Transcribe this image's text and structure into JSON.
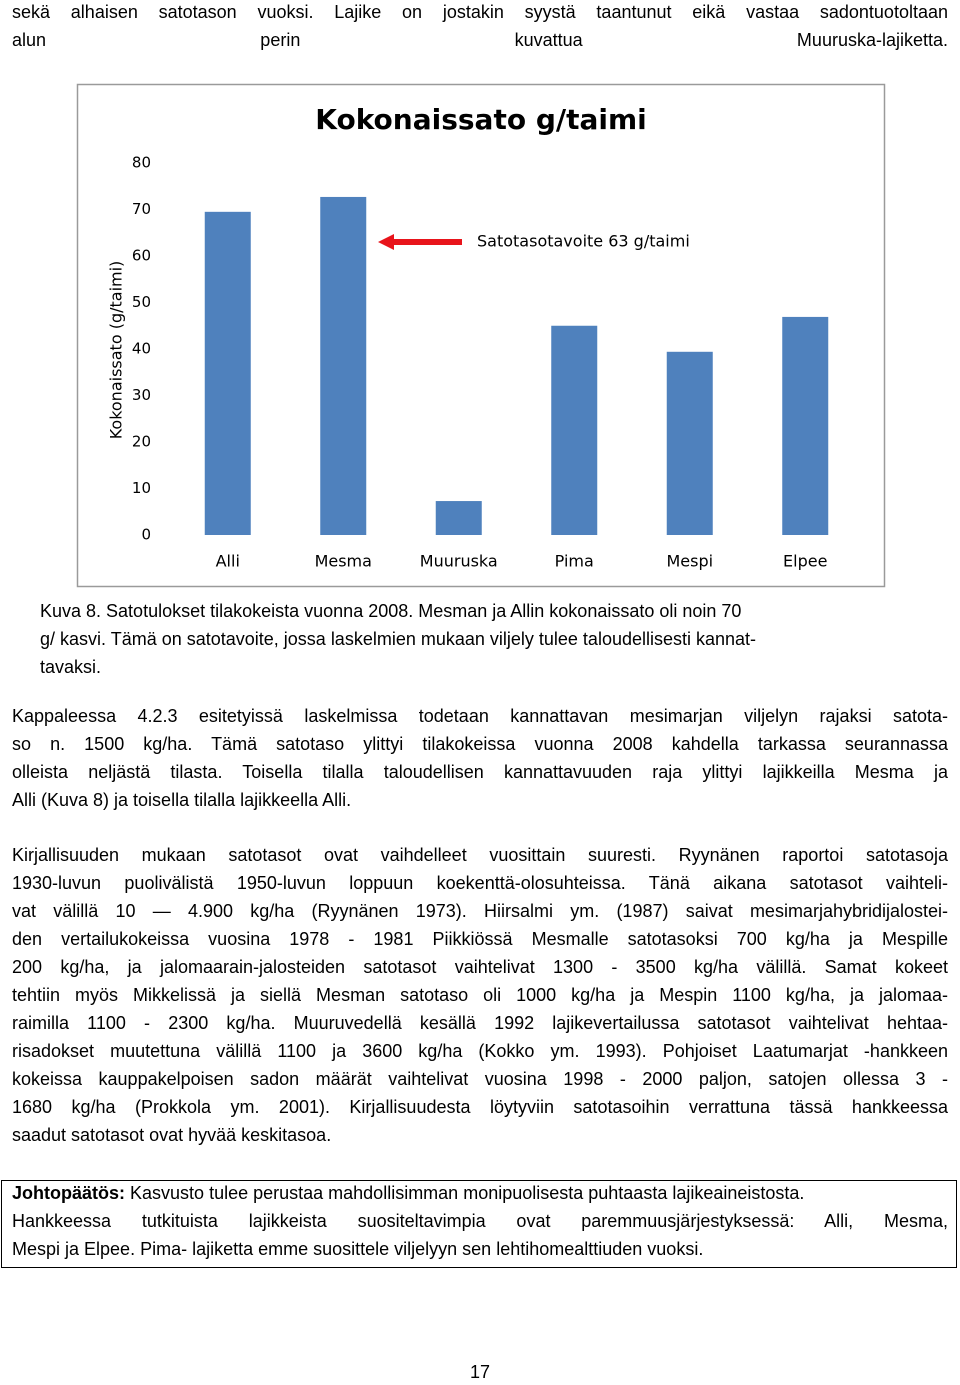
{
  "top_text": {
    "lines": [
      "sekä alhaisen satotason vuoksi. Lajike on jostakin syystä taantunut eikä vastaa sadontuotoltaan",
      "alun perin kuvattua Muuruska-lajiketta."
    ]
  },
  "chart_data": {
    "type": "bar",
    "title": "Kokonaissato g/taimi",
    "y_label": "Kokonaissato (g/taimi)",
    "categories": [
      "Alli",
      "Mesma",
      "Muuruska",
      "Pima",
      "Mespi",
      "Elpee"
    ],
    "values": [
      69.5,
      72.7,
      7.3,
      45,
      39.4,
      46.9
    ],
    "color": "#4f81bd",
    "ylim": [
      0,
      80
    ],
    "yticks": [
      0,
      10,
      20,
      30,
      40,
      50,
      60,
      70,
      80
    ],
    "grid": false,
    "annotations": [
      {
        "text": "Satotasotavoite 63 g/taimi",
        "value": 63,
        "color": "#e8141b"
      }
    ]
  },
  "caption": {
    "lines": [
      "Kuva 8. Satotulokset tilakokeista vuonna 2008. Mesman ja Allin kokonaissato oli noin 70",
      "g/ kasvi. Tämä on satotavoite, jossa laskelmien mukaan viljely tulee taloudellisesti kannat-",
      "tavaksi."
    ]
  },
  "paragraphs": [
    [
      "Kappaleessa 4.2.3 esitetyissä laskelmissa todetaan kannattavan mesimarjan viljelyn rajaksi satota-",
      "so n. 1500 kg/ha. Tämä satotaso ylittyi tilakokeissa vuonna 2008 kahdella tarkassa seurannassa",
      "olleista neljästä tilasta. Toisella tilalla taloudellisen kannattavuuden raja ylittyi lajikkeilla Mesma ja",
      "Alli (Kuva 8) ja toisella tilalla lajikkeella Alli."
    ],
    [
      "Kirjallisuuden mukaan satotasot ovat vaihdelleet vuosittain suuresti. Ryynänen raportoi satotasoja",
      "1930-luvun puolivälistä 1950-luvun loppuun koekenttä-olosuhteissa. Tänä aikana satotasot vaihteli-",
      "vat välillä 10 — 4.900 kg/ha (Ryynänen 1973). Hiirsalmi ym. (1987) saivat mesimarjahybridijalostei-",
      "den vertailukokeissa vuosina 1978 - 1981 Piikkiössä Mesmalle satotasoksi 700 kg/ha ja Mespille",
      "200 kg/ha, ja jalomaarain-jalosteiden satotasot vaihtelivat 1300 - 3500 kg/ha välillä. Samat kokeet",
      "tehtiin myös Mikkelissä ja siellä Mesman satotaso oli 1000 kg/ha ja Mespin 1100 kg/ha, ja jalomaa-",
      "raimilla 1100 - 2300 kg/ha. Muuruvedellä kesällä 1992 lajikevertailussa satotasot vaihtelivat hehtaa-",
      "risadokset muutettuna välillä 1100 ja 3600 kg/ha (Kokko ym. 1993). Pohjoiset Laatumarjat -hankkeen",
      "kokeissa kauppakelpoisen sadon määrät vaihtelivat vuosina 1998 - 2000 paljon, satojen ollessa 3 -",
      "1680 kg/ha (Prokkola ym. 2001). Kirjallisuudesta löytyviin satotasoihin verrattuna tässä hankkeessa",
      "saadut satotasot ovat hyvää keskitasoa."
    ]
  ],
  "conclusion": {
    "label": "Johtopäätös:",
    "lines": [
      "Kasvusto tulee perustaa mahdollisimman monipuolisesta puhtaasta lajikeaineistosta.",
      "Hankkeessa tutkituista lajikkeista suositeltavimpia ovat paremmuusjärjestyksessä: Alli, Mesma,",
      "Mespi ja Elpee. Pima- lajiketta emme suosittele viljelyyn sen lehtihomealttiuden vuoksi."
    ]
  },
  "page_number": "17"
}
